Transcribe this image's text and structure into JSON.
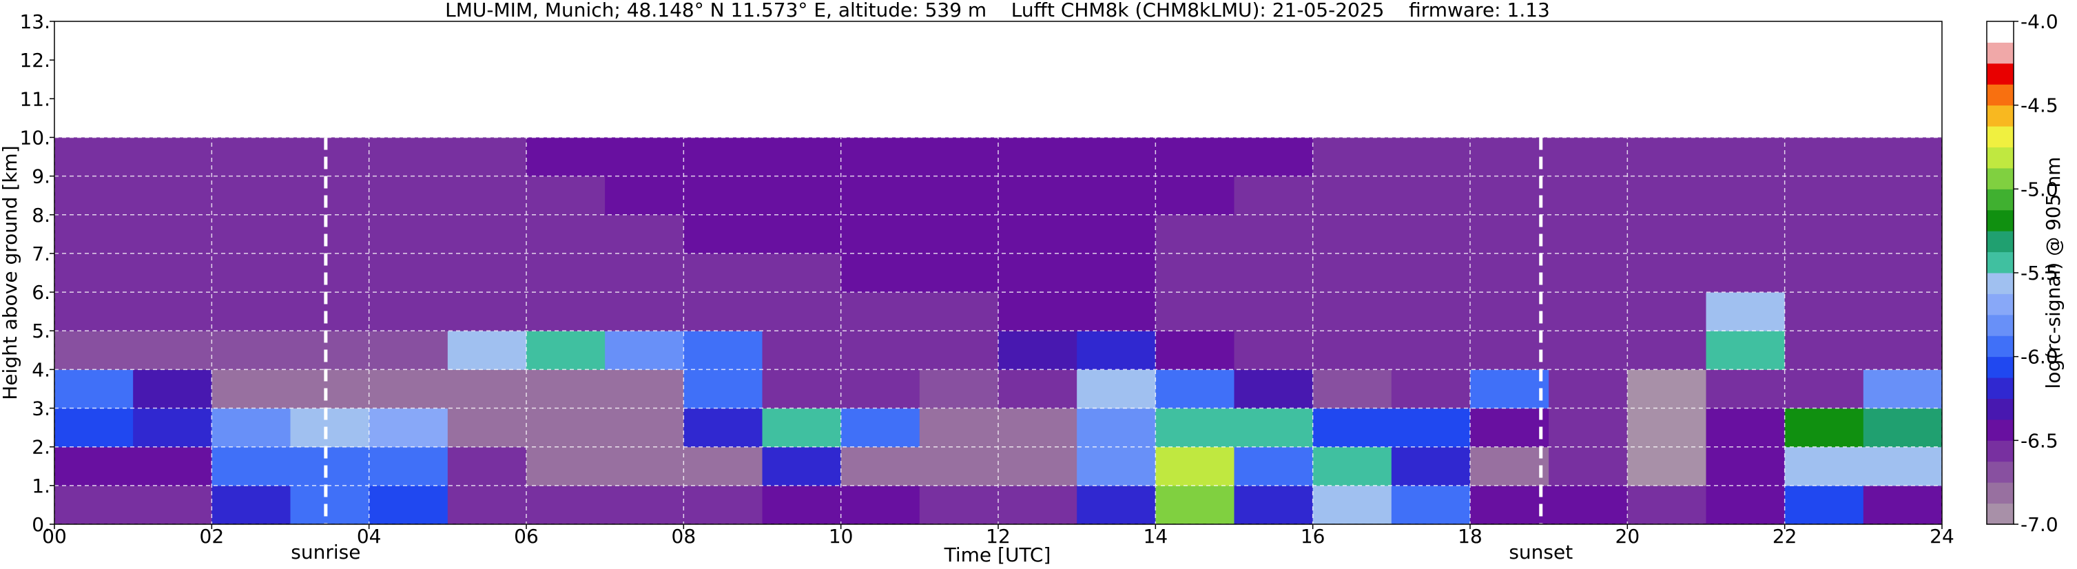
{
  "chart_data": {
    "type": "heatmap",
    "title": "LMU-MIM, Munich; 48.148° N 11.573° E, altitude: 539 m    Lufft CHM8k (CHM8kLMU): 21-05-2025    firmware: 1.13",
    "x_label": "Time [UTC]",
    "y_label": "Height above ground [km]",
    "xlim": [
      0,
      24
    ],
    "ylim": [
      0,
      13
    ],
    "xticks": [
      {
        "value": 0,
        "label": "00"
      },
      {
        "value": 2,
        "label": "02"
      },
      {
        "value": 4,
        "label": "04"
      },
      {
        "value": 6,
        "label": "06"
      },
      {
        "value": 8,
        "label": "08"
      },
      10,
      12,
      14,
      16,
      18,
      20,
      22,
      24
    ],
    "yticks": [
      {
        "value": 0,
        "label": "0."
      },
      {
        "value": 1,
        "label": "1."
      },
      {
        "value": 2,
        "label": "2."
      },
      {
        "value": 3,
        "label": "3."
      },
      {
        "value": 4,
        "label": "4."
      },
      {
        "value": 5,
        "label": "5."
      },
      {
        "value": 6,
        "label": "6."
      },
      {
        "value": 7,
        "label": "7."
      },
      {
        "value": 8,
        "label": "8."
      },
      {
        "value": 9,
        "label": "9."
      },
      {
        "value": 10,
        "label": "10."
      },
      {
        "value": 11,
        "label": "11."
      },
      {
        "value": 12,
        "label": "12."
      },
      {
        "value": 13,
        "label": "13."
      }
    ],
    "grid": true,
    "x_bins": [
      0,
      1,
      2,
      3,
      4,
      5,
      6,
      7,
      8,
      9,
      10,
      11,
      12,
      13,
      14,
      15,
      16,
      17,
      18,
      19,
      20,
      21,
      22,
      23,
      24
    ],
    "y_bins": [
      0,
      1,
      2,
      3,
      4,
      5,
      6,
      7,
      8,
      9,
      10
    ],
    "z": [
      [
        -6.6,
        -6.6,
        -6.2,
        -6.0,
        -6.1,
        -6.6,
        -6.6,
        -6.6,
        -6.6,
        -6.5,
        -6.4,
        -6.6,
        -6.6,
        -6.2,
        -5.0,
        -6.2,
        -5.6,
        -6.0,
        -6.5,
        -6.5,
        -6.6,
        -6.4,
        -6.1,
        -6.5
      ],
      [
        -6.4,
        -6.4,
        -6.0,
        -5.9,
        -6.0,
        -6.6,
        -6.8,
        -6.8,
        -6.8,
        -6.2,
        -6.8,
        -6.8,
        -6.8,
        -5.8,
        -4.8,
        -5.9,
        -5.4,
        -6.2,
        -6.8,
        -6.6,
        -6.9,
        -6.5,
        -5.6,
        -5.6
      ],
      [
        -6.1,
        -6.2,
        -5.8,
        -5.6,
        -5.7,
        -6.8,
        -6.8,
        -6.8,
        -6.2,
        -5.4,
        -5.9,
        -6.8,
        -6.8,
        -5.8,
        -5.4,
        -5.4,
        -6.1,
        -6.1,
        -6.4,
        -6.6,
        -6.9,
        -6.4,
        -5.2,
        -5.3
      ],
      [
        -6.0,
        -6.3,
        -6.8,
        -6.8,
        -6.8,
        -6.8,
        -6.8,
        -6.8,
        -6.0,
        -6.6,
        -6.6,
        -6.7,
        -6.6,
        -5.6,
        -5.9,
        -6.3,
        -6.7,
        -6.6,
        -6.0,
        -6.6,
        -6.9,
        -6.6,
        -6.6,
        -5.8
      ],
      [
        -6.7,
        -6.7,
        -6.7,
        -6.7,
        -6.7,
        -5.6,
        -5.4,
        -5.8,
        -5.9,
        -6.6,
        -6.6,
        -6.6,
        -6.3,
        -6.2,
        -6.5,
        -6.6,
        -6.6,
        -6.6,
        -6.6,
        -6.6,
        -6.6,
        -5.4,
        -6.6,
        -6.6
      ],
      [
        -6.6,
        -6.6,
        -6.6,
        -6.6,
        -6.6,
        -6.6,
        -6.6,
        -6.6,
        -6.6,
        -6.6,
        -6.6,
        -6.6,
        -6.4,
        -6.5,
        -6.6,
        -6.6,
        -6.6,
        -6.6,
        -6.6,
        -6.6,
        -6.6,
        -5.6,
        -6.6,
        -6.6
      ],
      [
        -6.6,
        -6.6,
        -6.6,
        -6.6,
        -6.6,
        -6.6,
        -6.6,
        -6.6,
        -6.6,
        -6.6,
        -6.5,
        -6.5,
        -6.4,
        -6.5,
        -6.6,
        -6.6,
        -6.6,
        -6.6,
        -6.6,
        -6.6,
        -6.6,
        -6.6,
        -6.6,
        -6.6
      ],
      [
        -6.6,
        -6.6,
        -6.6,
        -6.6,
        -6.6,
        -6.6,
        -6.6,
        -6.6,
        -6.5,
        -6.5,
        -6.4,
        -6.4,
        -6.4,
        -6.5,
        -6.6,
        -6.6,
        -6.6,
        -6.6,
        -6.6,
        -6.6,
        -6.6,
        -6.6,
        -6.6,
        -6.6
      ],
      [
        -6.6,
        -6.6,
        -6.6,
        -6.6,
        -6.6,
        -6.6,
        -6.6,
        -6.5,
        -6.5,
        -6.4,
        -6.4,
        -6.4,
        -6.4,
        -6.5,
        -6.5,
        -6.6,
        -6.6,
        -6.6,
        -6.6,
        -6.6,
        -6.6,
        -6.6,
        -6.6,
        -6.6
      ],
      [
        -6.6,
        -6.6,
        -6.6,
        -6.6,
        -6.6,
        -6.6,
        -6.5,
        -6.5,
        -6.4,
        -6.4,
        -6.4,
        -6.4,
        -6.4,
        -6.4,
        -6.5,
        -6.5,
        -6.6,
        -6.6,
        -6.6,
        -6.6,
        -6.6,
        -6.6,
        -6.6,
        -6.6
      ]
    ],
    "annotations": [
      {
        "x": 3.45,
        "label": "sunrise"
      },
      {
        "x": 18.9,
        "label": "sunset"
      }
    ],
    "colorbar": {
      "label": "log(rc-signal) @ 905 nm",
      "lim": [
        -7,
        -4
      ],
      "ticks": [
        {
          "value": -7,
          "label": "-7.0"
        },
        -6.5,
        {
          "value": -6,
          "label": "-6.0"
        },
        -5.5,
        {
          "value": -5,
          "label": "-5.0"
        },
        -4.5,
        {
          "value": -4,
          "label": "-4.0"
        }
      ],
      "colors": [
        "#a890a8",
        "#9870a0",
        "#8850a0",
        "#7830a0",
        "#6810a0",
        "#4818b0",
        "#3028d0",
        "#2048f0",
        "#4070f8",
        "#6890f8",
        "#88a8f8",
        "#a0c0f0",
        "#40c0a0",
        "#20a070",
        "#109010",
        "#40b030",
        "#80d040",
        "#c0e840",
        "#f0f040",
        "#f8b820",
        "#f87010",
        "#e80000",
        "#f0a8a8",
        "#ffffff"
      ]
    }
  }
}
